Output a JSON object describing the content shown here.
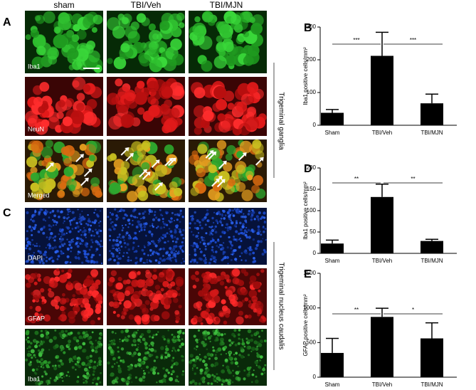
{
  "figure": {
    "columns": [
      "sham",
      "TBI/Veh",
      "TBI/MJN"
    ],
    "panel_a": "A",
    "panel_c": "C",
    "ganglia_rows": [
      "Iba1",
      "NeuN",
      "Merged"
    ],
    "nucleus_rows": [
      "DAPI",
      "GFAP",
      "Iba1"
    ],
    "ganglia_side_label": "Trigeminal ganglia",
    "nucleus_side_label": "Trigeminal nucleus caudalis"
  },
  "chart_data": [
    {
      "type": "bar",
      "panel": "B",
      "y_label": "Iba1 positive cells/mm²",
      "categories": [
        "Sham",
        "TBI/Veh",
        "TBI/MJN"
      ],
      "values": [
        38,
        212,
        67
      ],
      "errors": [
        10,
        72,
        28
      ],
      "color": "#000000",
      "ylim": [
        0,
        300
      ],
      "yticks": [
        0,
        100,
        200,
        300
      ],
      "annotations": [
        "***",
        "***"
      ]
    },
    {
      "type": "bar",
      "panel": "D",
      "y_label": "Iba1 positive cells/mm²",
      "categories": [
        "Sham",
        "TBI/Veh",
        "TBI/MJN"
      ],
      "values": [
        23,
        132,
        29
      ],
      "errors": [
        8,
        30,
        4
      ],
      "color": "#000000",
      "ylim": [
        0,
        200
      ],
      "yticks": [
        0,
        50,
        100,
        150,
        200
      ],
      "annotations": [
        "**",
        "**"
      ]
    },
    {
      "type": "bar",
      "panel": "E",
      "y_label": "GFAP positive cells/mm²",
      "categories": [
        "Sham",
        "TBI/Veh",
        "TBI/MJN"
      ],
      "values": [
        350,
        870,
        560
      ],
      "errors": [
        210,
        125,
        225
      ],
      "color": "#000000",
      "ylim": [
        0,
        1500
      ],
      "yticks": [
        0,
        500,
        1000,
        1500
      ],
      "annotations": [
        "**",
        "*"
      ]
    }
  ]
}
